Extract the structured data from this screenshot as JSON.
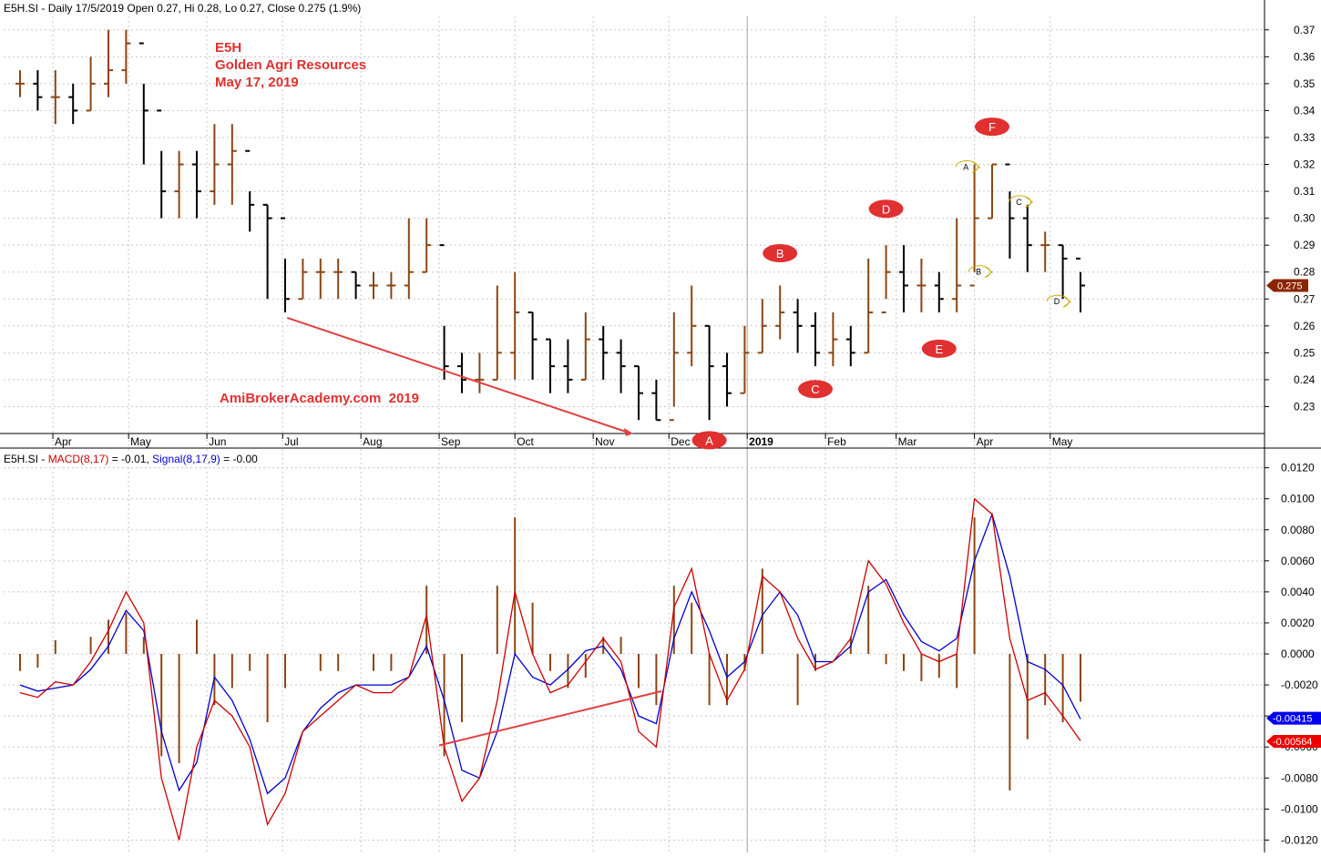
{
  "header": {
    "symbol": "E5H.SI",
    "period": "Daily 17/5/2019",
    "ohlc": "Open 0.27, Hi 0.28, Lo 0.27, Close 0.275 (1.9%)"
  },
  "annotation": {
    "ticker": "E5H",
    "company": "Golden Agri Resources",
    "date": "May 17, 2019",
    "watermark": "AmiBrokerAcademy.com  2019"
  },
  "colors": {
    "up_bar": "#8b4513",
    "down_bar": "#000000",
    "macd": "#cc0000",
    "signal": "#0000cc",
    "histogram": "#8b4513",
    "marker_red": "#e03030",
    "marker_yellow": "#f5d800",
    "trendline": "#e04040",
    "grid": "#c8c8c8"
  },
  "macd_header": {
    "symbol": "E5H.SI",
    "macd_label": "MACD(8,17)",
    "macd_value": "= -0.01,",
    "signal_label": "Signal(8,17,9)",
    "signal_value": "= -0.00"
  },
  "chart_data": [
    {
      "type": "candlestick",
      "title": "E5H.SI - Daily 17/5/2019 Open 0.27, Hi 0.28, Lo 0.27, Close 0.275 (1.9%)",
      "x_ticks": [
        "Apr",
        "May",
        "Jun",
        "Jul",
        "Aug",
        "Sep",
        "Oct",
        "Nov",
        "Dec",
        "2019",
        "Feb",
        "Mar",
        "Apr",
        "May"
      ],
      "ylim": [
        0.22,
        0.375
      ],
      "y_ticks": [
        0.23,
        0.24,
        0.25,
        0.26,
        0.27,
        0.28,
        0.29,
        0.3,
        0.31,
        0.32,
        0.33,
        0.34,
        0.35,
        0.36,
        0.37
      ],
      "last_price_label": "0.275",
      "series": [
        {
          "x": [
            "2018-03-19",
            "2018-03-26",
            "2018-04-02",
            "2018-04-09",
            "2018-04-16",
            "2018-04-23",
            "2018-04-30",
            "2018-05-07",
            "2018-05-14",
            "2018-05-21",
            "2018-05-28",
            "2018-06-04",
            "2018-06-11",
            "2018-06-18",
            "2018-06-25",
            "2018-07-02",
            "2018-07-09",
            "2018-07-16",
            "2018-07-23",
            "2018-07-30",
            "2018-08-06",
            "2018-08-13",
            "2018-08-20",
            "2018-08-27",
            "2018-09-03",
            "2018-09-10",
            "2018-09-17",
            "2018-09-24",
            "2018-10-01",
            "2018-10-08",
            "2018-10-15",
            "2018-10-22",
            "2018-10-29",
            "2018-11-05",
            "2018-11-12",
            "2018-11-19",
            "2018-11-26",
            "2018-12-03",
            "2018-12-10",
            "2018-12-17",
            "2018-12-24",
            "2018-12-31",
            "2019-01-07",
            "2019-01-14",
            "2019-01-21",
            "2019-01-28",
            "2019-02-04",
            "2019-02-11",
            "2019-02-18",
            "2019-02-25",
            "2019-03-04",
            "2019-03-11",
            "2019-03-18",
            "2019-03-25",
            "2019-04-01",
            "2019-04-08",
            "2019-04-15",
            "2019-04-22",
            "2019-04-29",
            "2019-05-06",
            "2019-05-13"
          ],
          "close": [
            0.35,
            0.345,
            0.345,
            0.34,
            0.35,
            0.355,
            0.365,
            0.34,
            0.31,
            0.32,
            0.31,
            0.32,
            0.325,
            0.305,
            0.3,
            0.27,
            0.28,
            0.28,
            0.28,
            0.275,
            0.275,
            0.275,
            0.28,
            0.29,
            0.245,
            0.24,
            0.24,
            0.25,
            0.265,
            0.255,
            0.245,
            0.24,
            0.255,
            0.25,
            0.245,
            0.235,
            0.225,
            0.25,
            0.26,
            0.245,
            0.235,
            0.25,
            0.26,
            0.265,
            0.26,
            0.25,
            0.255,
            0.25,
            0.265,
            0.28,
            0.275,
            0.275,
            0.27,
            0.275,
            0.3,
            0.32,
            0.3,
            0.29,
            0.29,
            0.285,
            0.275
          ],
          "high": [
            0.355,
            0.355,
            0.355,
            0.35,
            0.36,
            0.37,
            0.37,
            0.35,
            0.325,
            0.325,
            0.325,
            0.335,
            0.335,
            0.31,
            0.305,
            0.285,
            0.285,
            0.285,
            0.285,
            0.28,
            0.28,
            0.28,
            0.3,
            0.3,
            0.26,
            0.25,
            0.25,
            0.275,
            0.28,
            0.265,
            0.255,
            0.255,
            0.265,
            0.26,
            0.255,
            0.245,
            0.24,
            0.265,
            0.275,
            0.26,
            0.25,
            0.26,
            0.27,
            0.275,
            0.27,
            0.265,
            0.265,
            0.26,
            0.285,
            0.29,
            0.29,
            0.285,
            0.28,
            0.3,
            0.32,
            0.32,
            0.31,
            0.305,
            0.295,
            0.29,
            0.28
          ],
          "low": [
            0.345,
            0.34,
            0.335,
            0.335,
            0.34,
            0.345,
            0.35,
            0.32,
            0.3,
            0.3,
            0.3,
            0.305,
            0.305,
            0.295,
            0.27,
            0.265,
            0.27,
            0.27,
            0.27,
            0.27,
            0.27,
            0.27,
            0.27,
            0.28,
            0.24,
            0.235,
            0.235,
            0.24,
            0.24,
            0.24,
            0.235,
            0.235,
            0.24,
            0.24,
            0.235,
            0.225,
            0.225,
            0.23,
            0.245,
            0.225,
            0.23,
            0.235,
            0.25,
            0.255,
            0.25,
            0.245,
            0.245,
            0.245,
            0.25,
            0.27,
            0.265,
            0.265,
            0.265,
            0.265,
            0.28,
            0.3,
            0.285,
            0.28,
            0.28,
            0.27,
            0.265
          ]
        }
      ],
      "markers_red": [
        "A",
        "B",
        "C",
        "D",
        "E",
        "F"
      ],
      "markers_yellow": [
        "A",
        "B",
        "C",
        "D"
      ]
    },
    {
      "type": "line",
      "title": "E5H.SI - MACD(8,17) = -0.01, Signal(8,17,9) = -0.00",
      "ylim": [
        -0.0128,
        0.0128
      ],
      "y_ticks": [
        -0.012,
        -0.01,
        -0.008,
        -0.006,
        -0.004,
        -0.002,
        0.0,
        0.002,
        0.004,
        0.006,
        0.008,
        0.01,
        0.012
      ],
      "last_signal_label": "-0.00415",
      "last_macd_label": "-0.00564",
      "series": [
        {
          "name": "MACD(8,17)",
          "x": [
            "2018-03-19",
            "2018-03-26",
            "2018-04-02",
            "2018-04-09",
            "2018-04-16",
            "2018-04-23",
            "2018-04-30",
            "2018-05-07",
            "2018-05-14",
            "2018-05-21",
            "2018-05-28",
            "2018-06-04",
            "2018-06-11",
            "2018-06-18",
            "2018-06-25",
            "2018-07-02",
            "2018-07-09",
            "2018-07-16",
            "2018-07-23",
            "2018-07-30",
            "2018-08-06",
            "2018-08-13",
            "2018-08-20",
            "2018-08-27",
            "2018-09-03",
            "2018-09-10",
            "2018-09-17",
            "2018-09-24",
            "2018-10-01",
            "2018-10-08",
            "2018-10-15",
            "2018-10-22",
            "2018-10-29",
            "2018-11-05",
            "2018-11-12",
            "2018-11-19",
            "2018-11-26",
            "2018-12-03",
            "2018-12-10",
            "2018-12-17",
            "2018-12-24",
            "2018-12-31",
            "2019-01-07",
            "2019-01-14",
            "2019-01-21",
            "2019-01-28",
            "2019-02-04",
            "2019-02-11",
            "2019-02-18",
            "2019-02-25",
            "2019-03-04",
            "2019-03-11",
            "2019-03-18",
            "2019-03-25",
            "2019-04-01",
            "2019-04-08",
            "2019-04-15",
            "2019-04-22",
            "2019-04-29",
            "2019-05-06",
            "2019-05-13"
          ],
          "values": [
            -0.0025,
            -0.0028,
            -0.0018,
            -0.002,
            -0.0005,
            0.0015,
            0.004,
            0.002,
            -0.008,
            -0.012,
            -0.006,
            -0.003,
            -0.004,
            -0.006,
            -0.011,
            -0.009,
            -0.005,
            -0.004,
            -0.003,
            -0.002,
            -0.0025,
            -0.0025,
            -0.0015,
            0.0025,
            -0.006,
            -0.0095,
            -0.008,
            -0.003,
            0.004,
            0.0,
            -0.0025,
            -0.002,
            -0.0005,
            0.001,
            -0.0005,
            -0.005,
            -0.006,
            0.003,
            0.0055,
            0.0,
            -0.003,
            -0.001,
            0.005,
            0.004,
            0.001,
            -0.001,
            -0.0005,
            0.001,
            0.006,
            0.0045,
            0.002,
            0.0,
            -0.0005,
            0.0,
            0.01,
            0.009,
            0.001,
            -0.003,
            -0.0025,
            -0.004,
            -0.0056
          ]
        },
        {
          "name": "Signal(8,17,9)",
          "x": [
            "2018-03-19",
            "2018-03-26",
            "2018-04-02",
            "2018-04-09",
            "2018-04-16",
            "2018-04-23",
            "2018-04-30",
            "2018-05-07",
            "2018-05-14",
            "2018-05-21",
            "2018-05-28",
            "2018-06-04",
            "2018-06-11",
            "2018-06-18",
            "2018-06-25",
            "2018-07-02",
            "2018-07-09",
            "2018-07-16",
            "2018-07-23",
            "2018-07-30",
            "2018-08-06",
            "2018-08-13",
            "2018-08-20",
            "2018-08-27",
            "2018-09-03",
            "2018-09-10",
            "2018-09-17",
            "2018-09-24",
            "2018-10-01",
            "2018-10-08",
            "2018-10-15",
            "2018-10-22",
            "2018-10-29",
            "2018-11-05",
            "2018-11-12",
            "2018-11-19",
            "2018-11-26",
            "2018-12-03",
            "2018-12-10",
            "2018-12-17",
            "2018-12-24",
            "2018-12-31",
            "2019-01-07",
            "2019-01-14",
            "2019-01-21",
            "2019-01-28",
            "2019-02-04",
            "2019-02-11",
            "2019-02-18",
            "2019-02-25",
            "2019-03-04",
            "2019-03-11",
            "2019-03-18",
            "2019-03-25",
            "2019-04-01",
            "2019-04-08",
            "2019-04-15",
            "2019-04-22",
            "2019-04-29",
            "2019-05-06",
            "2019-05-13"
          ],
          "values": [
            -0.002,
            -0.0024,
            -0.0022,
            -0.002,
            -0.001,
            0.0005,
            0.0028,
            0.0015,
            -0.005,
            -0.0088,
            -0.007,
            -0.0015,
            -0.003,
            -0.0055,
            -0.009,
            -0.008,
            -0.005,
            -0.0035,
            -0.0025,
            -0.002,
            -0.002,
            -0.002,
            -0.0015,
            0.0005,
            -0.003,
            -0.0075,
            -0.008,
            -0.005,
            0.0,
            -0.0015,
            -0.002,
            -0.001,
            0.0002,
            0.0005,
            -0.001,
            -0.004,
            -0.0045,
            0.001,
            0.004,
            0.0015,
            -0.0015,
            -0.0005,
            0.0025,
            0.004,
            0.0025,
            -0.0005,
            -0.0005,
            0.0005,
            0.004,
            0.0048,
            0.0025,
            0.0008,
            0.0002,
            0.001,
            0.006,
            0.009,
            0.005,
            -0.0005,
            -0.001,
            -0.002,
            -0.0042
          ]
        }
      ]
    }
  ]
}
